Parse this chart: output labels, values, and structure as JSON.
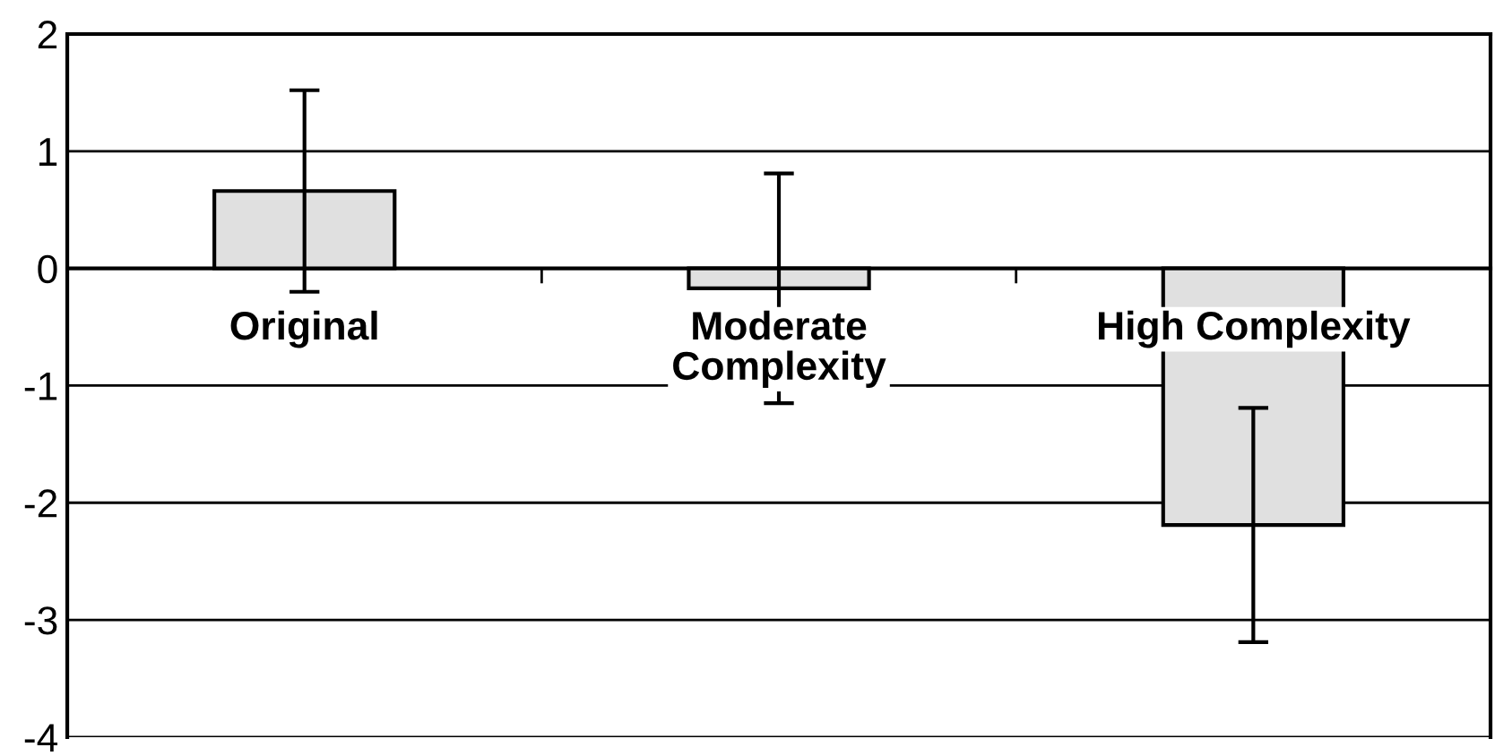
{
  "chart_data": {
    "type": "bar",
    "categories": [
      "Original",
      "Moderate\nComplexity",
      "High Complexity"
    ],
    "values": [
      0.66,
      -0.17,
      -2.19
    ],
    "errors": [
      0.86,
      0.98,
      1.0
    ],
    "color": "#e0e0e0",
    "ylim": [
      -4,
      2
    ],
    "yticks": [
      -4,
      -3,
      -2,
      -1,
      0,
      1,
      2
    ],
    "grid": "y"
  }
}
